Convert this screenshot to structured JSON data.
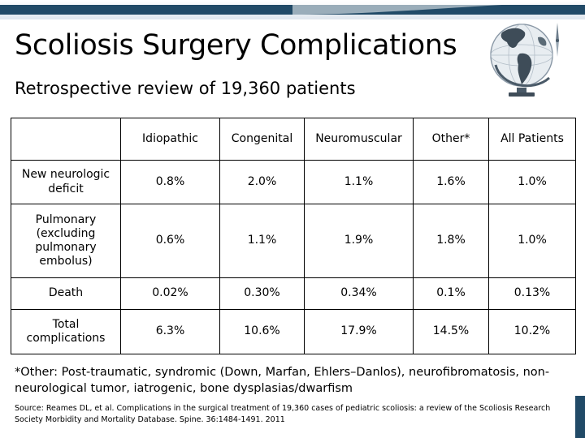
{
  "slide": {
    "title": "Scoliosis Surgery Complications",
    "subtitle": "Retrospective review of 19,360 patients",
    "accent_color": "#214a67",
    "decoration_icon": "globe-with-compass-icon"
  },
  "table": {
    "headers": [
      "",
      "Idiopathic",
      "Congenital",
      "Neuromuscular",
      "Other*",
      "All Patients"
    ],
    "rows": [
      {
        "label": "New neurologic deficit",
        "values": [
          "0.8%",
          "2.0%",
          "1.1%",
          "1.6%",
          "1.0%"
        ]
      },
      {
        "label": "Pulmonary (excluding pulmonary embolus)",
        "values": [
          "0.6%",
          "1.1%",
          "1.9%",
          "1.8%",
          "1.0%"
        ]
      },
      {
        "label": "Death",
        "values": [
          "0.02%",
          "0.30%",
          "0.34%",
          "0.1%",
          "0.13%"
        ]
      },
      {
        "label": "Total complications",
        "values": [
          "6.3%",
          "10.6%",
          "17.9%",
          "14.5%",
          "10.2%"
        ]
      }
    ]
  },
  "footnote": "*Other: Post-traumatic, syndromic (Down, Marfan, Ehlers–Danlos), neurofibromatosis, non-neurological tumor, iatrogenic, bone dysplasias/dwarfism",
  "source": "Source: Reames DL, et al. Complications in the surgical treatment of 19,360 cases of pediatric scoliosis: a review of the Scoliosis Research Society Morbidity and Mortality Database. Spine. 36:1484-1491. 2011"
}
